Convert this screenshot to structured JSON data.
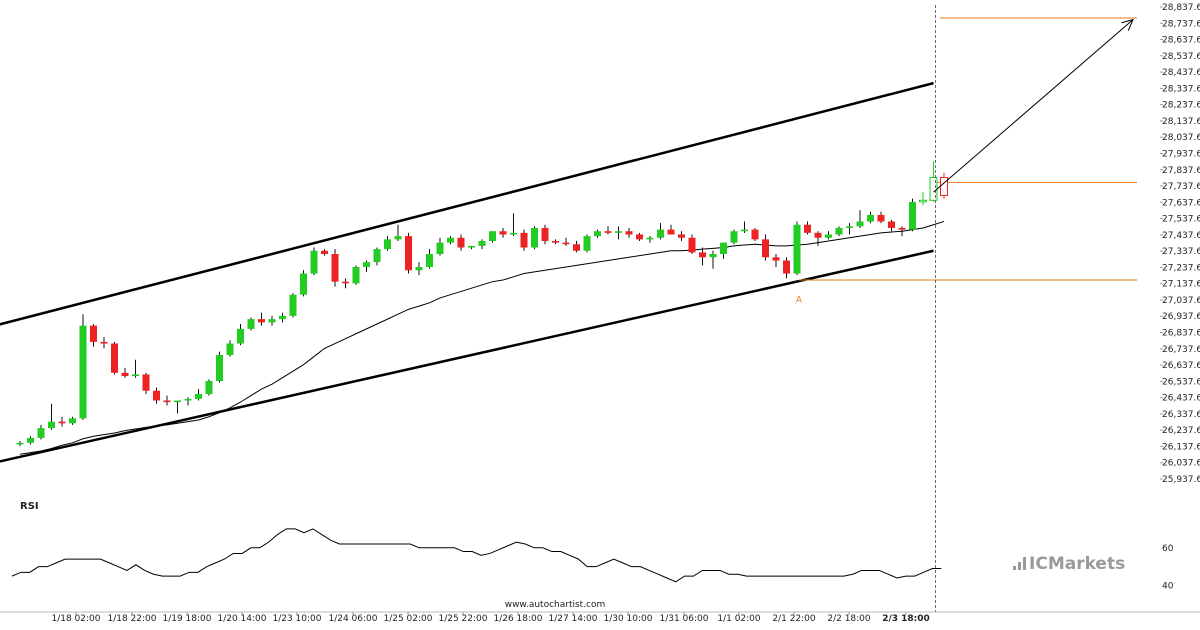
{
  "chart_data": {
    "type": "candlestick",
    "instrument_note": "",
    "y_axis": {
      "ticks": [
        "28,837.6512",
        "28,737.6512",
        "28,637.6512",
        "28,537.6512",
        "28,437.6512",
        "28,337.6512",
        "28,237.6512",
        "28,137.6512",
        "28,037.6512",
        "27,937.6512",
        "27,837.6512",
        "27,737.6512",
        "27,637.6512",
        "27,537.6512",
        "27,437.6512",
        "27,337.6512",
        "27,237.6512",
        "27,137.6512",
        "27,037.6512",
        "26,937.6512",
        "26,837.6512",
        "26,737.6512",
        "26,637.6512",
        "26,537.6512",
        "26,437.6512",
        "26,337.6512",
        "26,237.6512",
        "26,137.6512",
        "26,037.6512",
        "25,937.6512"
      ],
      "min": 25937.6512,
      "max": 28837.6512,
      "step": 100
    },
    "x_axis": {
      "ticks": [
        "1/18 02:00",
        "1/18 22:00",
        "1/19 18:00",
        "1/20 14:00",
        "1/23 10:00",
        "1/24 06:00",
        "1/25 02:00",
        "1/25 22:00",
        "1/26 18:00",
        "1/27 14:00",
        "1/30 10:00",
        "1/31 06:00",
        "1/1 02:00",
        "2/1 22:00",
        "2/2 18:00",
        "2/3 18:00"
      ],
      "highlight": "2/3 18:00"
    },
    "candles": [
      [
        26150,
        26170,
        26140,
        26160
      ],
      [
        26160,
        26200,
        26150,
        26190
      ],
      [
        26190,
        26270,
        26180,
        26250
      ],
      [
        26250,
        26400,
        26240,
        26290
      ],
      [
        26290,
        26320,
        26260,
        26280
      ],
      [
        26280,
        26320,
        26270,
        26310
      ],
      [
        26310,
        26950,
        26300,
        26880
      ],
      [
        26880,
        26890,
        26750,
        26780
      ],
      [
        26780,
        26810,
        26740,
        26770
      ],
      [
        26770,
        26780,
        26580,
        26590
      ],
      [
        26590,
        26620,
        26560,
        26570
      ],
      [
        26570,
        26670,
        26560,
        26580
      ],
      [
        26580,
        26590,
        26460,
        26480
      ],
      [
        26480,
        26500,
        26400,
        26420
      ],
      [
        26420,
        26450,
        26390,
        26410
      ],
      [
        26410,
        26420,
        26340,
        26420
      ],
      [
        26420,
        26440,
        26390,
        26430
      ],
      [
        26430,
        26490,
        26420,
        26460
      ],
      [
        26460,
        26550,
        26450,
        26540
      ],
      [
        26540,
        26720,
        26530,
        26700
      ],
      [
        26700,
        26790,
        26690,
        26770
      ],
      [
        26770,
        26890,
        26760,
        26860
      ],
      [
        26860,
        26930,
        26850,
        26920
      ],
      [
        26920,
        26960,
        26880,
        26900
      ],
      [
        26900,
        26940,
        26880,
        26920
      ],
      [
        26920,
        26960,
        26900,
        26940
      ],
      [
        26940,
        27080,
        26930,
        27070
      ],
      [
        27070,
        27220,
        27060,
        27200
      ],
      [
        27200,
        27360,
        27190,
        27340
      ],
      [
        27340,
        27350,
        27310,
        27320
      ],
      [
        27320,
        27350,
        27120,
        27150
      ],
      [
        27150,
        27170,
        27110,
        27140
      ],
      [
        27140,
        27250,
        27130,
        27240
      ],
      [
        27240,
        27280,
        27210,
        27270
      ],
      [
        27270,
        27360,
        27250,
        27350
      ],
      [
        27350,
        27430,
        27340,
        27410
      ],
      [
        27410,
        27500,
        27400,
        27430
      ],
      [
        27430,
        27450,
        27200,
        27220
      ],
      [
        27220,
        27270,
        27190,
        27240
      ],
      [
        27240,
        27350,
        27230,
        27320
      ],
      [
        27320,
        27420,
        27310,
        27390
      ],
      [
        27390,
        27430,
        27380,
        27420
      ],
      [
        27420,
        27440,
        27340,
        27360
      ],
      [
        27360,
        27370,
        27350,
        27370
      ],
      [
        27370,
        27410,
        27350,
        27400
      ],
      [
        27400,
        27460,
        27390,
        27460
      ],
      [
        27460,
        27480,
        27420,
        27440
      ],
      [
        27440,
        27570,
        27430,
        27450
      ],
      [
        27450,
        27470,
        27340,
        27360
      ],
      [
        27360,
        27490,
        27350,
        27480
      ],
      [
        27480,
        27500,
        27380,
        27400
      ],
      [
        27400,
        27410,
        27380,
        27390
      ],
      [
        27390,
        27420,
        27370,
        27380
      ],
      [
        27380,
        27400,
        27330,
        27340
      ],
      [
        27340,
        27440,
        27330,
        27430
      ],
      [
        27430,
        27470,
        27420,
        27460
      ],
      [
        27460,
        27490,
        27440,
        27450
      ],
      [
        27450,
        27490,
        27410,
        27460
      ],
      [
        27460,
        27480,
        27420,
        27440
      ],
      [
        27440,
        27450,
        27400,
        27410
      ],
      [
        27410,
        27430,
        27390,
        27420
      ],
      [
        27420,
        27510,
        27410,
        27470
      ],
      [
        27470,
        27500,
        27440,
        27440
      ],
      [
        27440,
        27460,
        27400,
        27420
      ],
      [
        27420,
        27440,
        27320,
        27330
      ],
      [
        27330,
        27360,
        27250,
        27300
      ],
      [
        27300,
        27340,
        27230,
        27320
      ],
      [
        27320,
        27390,
        27290,
        27390
      ],
      [
        27390,
        27470,
        27380,
        27460
      ],
      [
        27460,
        27520,
        27450,
        27470
      ],
      [
        27470,
        27480,
        27400,
        27410
      ],
      [
        27410,
        27440,
        27280,
        27300
      ],
      [
        27300,
        27320,
        27240,
        27280
      ],
      [
        27280,
        27300,
        27170,
        27200
      ],
      [
        27200,
        27520,
        27190,
        27500
      ],
      [
        27500,
        27520,
        27440,
        27450
      ],
      [
        27450,
        27460,
        27370,
        27420
      ],
      [
        27420,
        27460,
        27410,
        27440
      ],
      [
        27440,
        27490,
        27430,
        27480
      ],
      [
        27480,
        27510,
        27440,
        27490
      ],
      [
        27490,
        27590,
        27480,
        27520
      ],
      [
        27520,
        27580,
        27510,
        27560
      ],
      [
        27560,
        27580,
        27510,
        27520
      ],
      [
        27520,
        27530,
        27460,
        27480
      ],
      [
        27480,
        27490,
        27430,
        27470
      ],
      [
        27470,
        27660,
        27460,
        27640
      ],
      [
        27640,
        27700,
        27620,
        27650
      ],
      [
        27650,
        27890,
        27640,
        27790
      ],
      [
        27790,
        27820,
        27660,
        27680
      ]
    ],
    "ma_values": [
      26090,
      26100,
      26110,
      26125,
      26145,
      26160,
      26185,
      26200,
      26210,
      26220,
      26235,
      26245,
      26255,
      26265,
      26270,
      26280,
      26290,
      26300,
      26320,
      26345,
      26375,
      26410,
      26450,
      26490,
      26520,
      26560,
      26600,
      26640,
      26690,
      26740,
      26770,
      26800,
      26830,
      26860,
      26890,
      26920,
      26950,
      26980,
      27000,
      27020,
      27050,
      27070,
      27090,
      27110,
      27130,
      27150,
      27160,
      27180,
      27200,
      27210,
      27220,
      27230,
      27240,
      27250,
      27260,
      27270,
      27280,
      27290,
      27300,
      27310,
      27320,
      27330,
      27340,
      27340,
      27345,
      27350,
      27355,
      27360,
      27370,
      27375,
      27380,
      27375,
      27370,
      27370,
      27375,
      27380,
      27390,
      27400,
      27410,
      27420,
      27430,
      27440,
      27450,
      27455,
      27460,
      27470,
      27480,
      27500,
      27520
    ],
    "channel": {
      "upper": {
        "start_index": -3,
        "start_value": 26870,
        "end_index": 87,
        "end_value": 28370
      },
      "lower": {
        "start_index": -3,
        "start_value": 26030,
        "end_index": 87,
        "end_value": 27340
      }
    },
    "levels": [
      {
        "value": 27760,
        "color": "#e07b1a",
        "label": ""
      },
      {
        "value": 27160,
        "color": "#e07b1a",
        "label": ""
      },
      {
        "value": 28770,
        "color": "#e07b1a",
        "label": ""
      }
    ],
    "pivot_marker": {
      "label": "A",
      "index": 74,
      "value": 27120
    },
    "forecast_arrow": {
      "from_index": 87,
      "from_value": 27700,
      "to_index": 106,
      "to_value": 28760
    },
    "current_time_index": 87,
    "rsi": {
      "label": "RSI",
      "ticks": [
        60,
        40
      ],
      "min": 35,
      "max": 80,
      "values": [
        45,
        47,
        47,
        50,
        50,
        52,
        54,
        54,
        54,
        54,
        54,
        52,
        50,
        48,
        51,
        48,
        46,
        45,
        45,
        45,
        47,
        47,
        50,
        52,
        54,
        57,
        57,
        60,
        60,
        63,
        67,
        70,
        70,
        68,
        70,
        67,
        64,
        62,
        62,
        62,
        62,
        62,
        62,
        62,
        62,
        62,
        60,
        60,
        60,
        60,
        60,
        58,
        58,
        56,
        57,
        59,
        61,
        63,
        62,
        60,
        60,
        58,
        58,
        56,
        54,
        50,
        50,
        52,
        54,
        52,
        50,
        50,
        48,
        46,
        44,
        42,
        45,
        45,
        48,
        48,
        48,
        46,
        46,
        45,
        45,
        45,
        45,
        45,
        45,
        45,
        45,
        45,
        45,
        45,
        45,
        46,
        48,
        48,
        48,
        46,
        44,
        45,
        45,
        47,
        49,
        49
      ]
    },
    "watermark": {
      "url": "www.autochartist.com",
      "brand_part1": "IC",
      "brand_part2": "Markets"
    },
    "colors": {
      "bull": "#22cc22",
      "bear": "#ee2222",
      "channel": "#000000",
      "level": "#e07b1a",
      "ma": "#000000",
      "rsi": "#000000",
      "brand": "#9a9a9a"
    }
  }
}
